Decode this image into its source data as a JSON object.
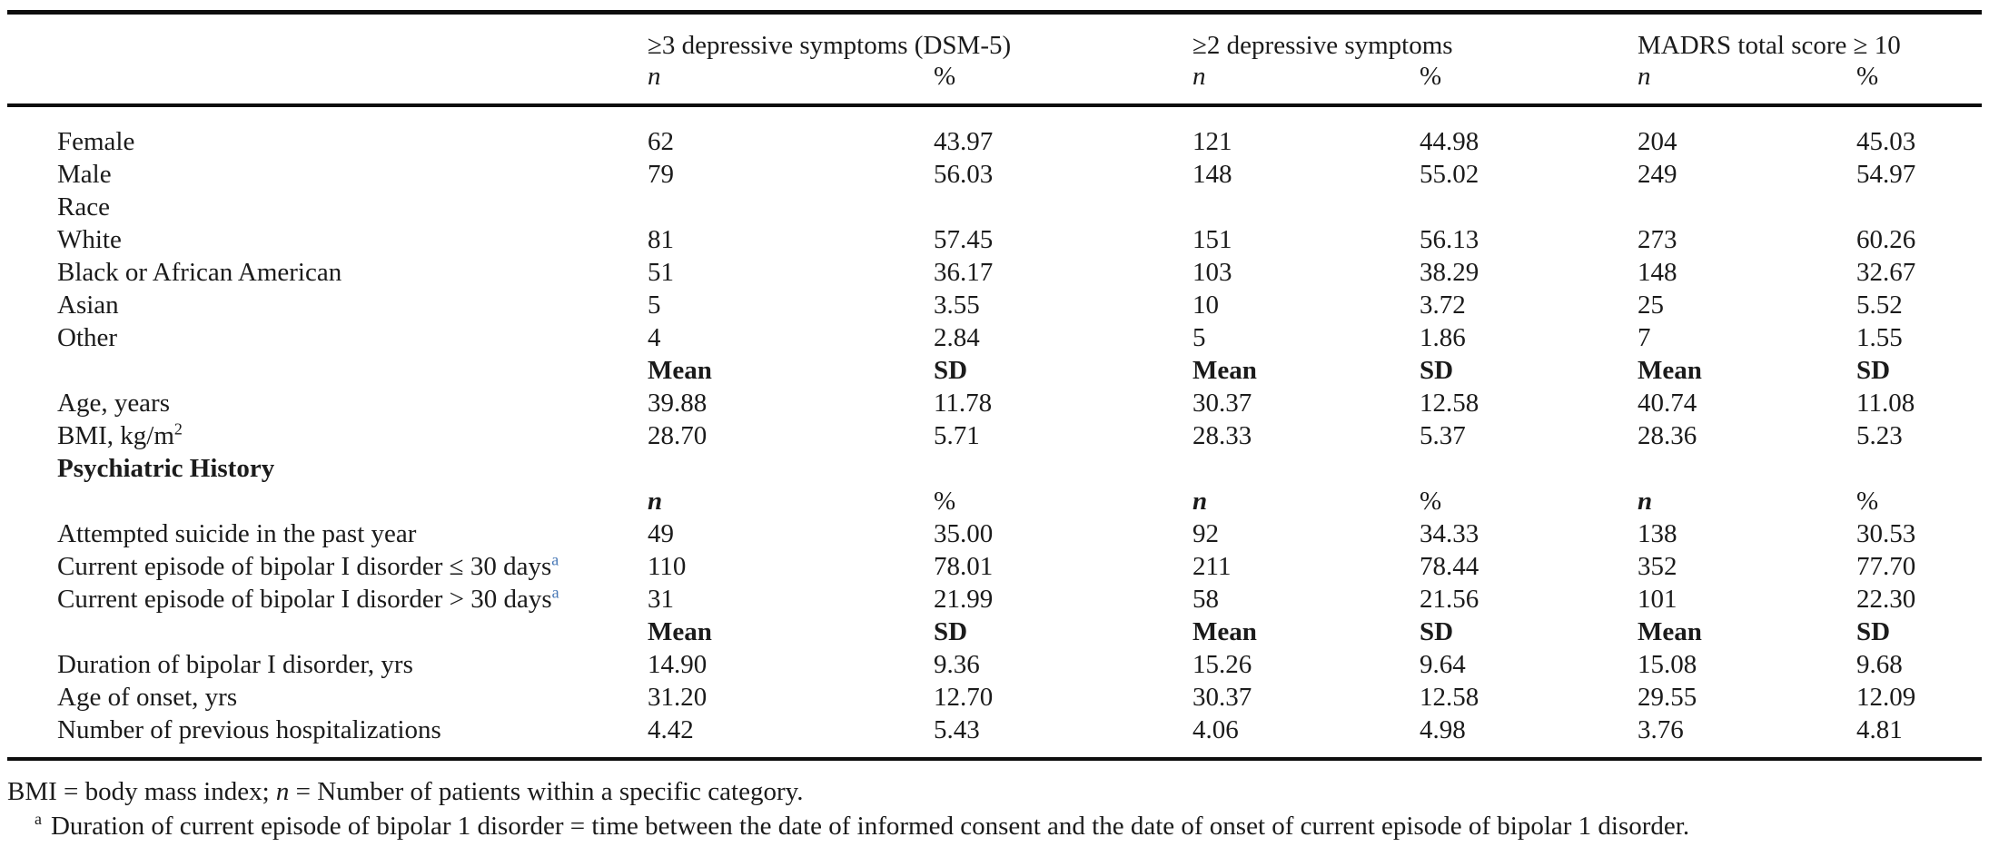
{
  "colors": {
    "text": "#1b1b1b",
    "rule": "#0d0d0d",
    "footnote_marker_accent": "#4576b5"
  },
  "table": {
    "groups": [
      {
        "label": "≥3 depressive symptoms (DSM-5)"
      },
      {
        "label": "≥2 depressive symptoms"
      },
      {
        "label": "MADRS total score ≥ 10"
      }
    ],
    "subheaders": [
      "n",
      "%",
      "n",
      "%",
      "n",
      "%"
    ],
    "rows": [
      {
        "label": "Female",
        "cells": [
          "62",
          "43.97",
          "121",
          "44.98",
          "204",
          "45.03"
        ]
      },
      {
        "label": "Male",
        "cells": [
          "79",
          "56.03",
          "148",
          "55.02",
          "249",
          "54.97"
        ]
      },
      {
        "label": "Race",
        "cells": [
          "",
          "",
          "",
          "",
          "",
          ""
        ]
      },
      {
        "label": "White",
        "cells": [
          "81",
          "57.45",
          "151",
          "56.13",
          "273",
          "60.26"
        ]
      },
      {
        "label": "Black or African American",
        "cells": [
          "51",
          "36.17",
          "103",
          "38.29",
          "148",
          "32.67"
        ]
      },
      {
        "label": "Asian",
        "cells": [
          "5",
          "3.55",
          "10",
          "3.72",
          "25",
          "5.52"
        ]
      },
      {
        "label": "Other",
        "cells": [
          "4",
          "2.84",
          "5",
          "1.86",
          "7",
          "1.55"
        ]
      },
      {
        "label": "",
        "style": "meansd",
        "cells": [
          "Mean",
          "SD",
          "Mean",
          "SD",
          "Mean",
          "SD"
        ]
      },
      {
        "label": "Age, years",
        "cells": [
          "39.88",
          "11.78",
          "30.37",
          "12.58",
          "40.74",
          "11.08"
        ]
      },
      {
        "label": "BMI, kg/m",
        "sup": "2",
        "cells": [
          "28.70",
          "5.71",
          "28.33",
          "5.37",
          "28.36",
          "5.23"
        ]
      },
      {
        "label": "Psychiatric History",
        "bold": true,
        "cells": [
          "",
          "",
          "",
          "",
          "",
          ""
        ]
      },
      {
        "label": "",
        "style": "npct",
        "cells": [
          "n",
          "%",
          "n",
          "%",
          "n",
          "%"
        ]
      },
      {
        "label": "Attempted suicide in the past year",
        "cells": [
          "49",
          "35.00",
          "92",
          "34.33",
          "138",
          "30.53"
        ]
      },
      {
        "label": "Current episode of bipolar I disorder ≤ 30 days",
        "sup": "a",
        "sup_accent": true,
        "cells": [
          "110",
          "78.01",
          "211",
          "78.44",
          "352",
          "77.70"
        ]
      },
      {
        "label": "Current episode of bipolar I disorder > 30 days",
        "sup": "a",
        "sup_accent": true,
        "cells": [
          "31",
          "21.99",
          "58",
          "21.56",
          "101",
          "22.30"
        ]
      },
      {
        "label": "",
        "style": "meansd",
        "cells": [
          "Mean",
          "SD",
          "Mean",
          "SD",
          "Mean",
          "SD"
        ]
      },
      {
        "label": "Duration of bipolar I disorder, yrs",
        "cells": [
          "14.90",
          "9.36",
          "15.26",
          "9.64",
          "15.08",
          "9.68"
        ]
      },
      {
        "label": "Age of onset, yrs",
        "cells": [
          "31.20",
          "12.70",
          "30.37",
          "12.58",
          "29.55",
          "12.09"
        ]
      },
      {
        "label": "Number of previous hospitalizations",
        "cells": [
          "4.42",
          "5.43",
          "4.06",
          "4.98",
          "3.76",
          "4.81"
        ]
      }
    ]
  },
  "footnotes": {
    "abbrev": {
      "pre": "BMI = body mass index; ",
      "italic_n": "n",
      "post": " = Number of patients within a specific category."
    },
    "a": {
      "marker": "a",
      "text": "Duration of current episode of bipolar 1 disorder = time between the date of informed consent and the date of onset of current episode of bipolar 1 disorder."
    }
  }
}
